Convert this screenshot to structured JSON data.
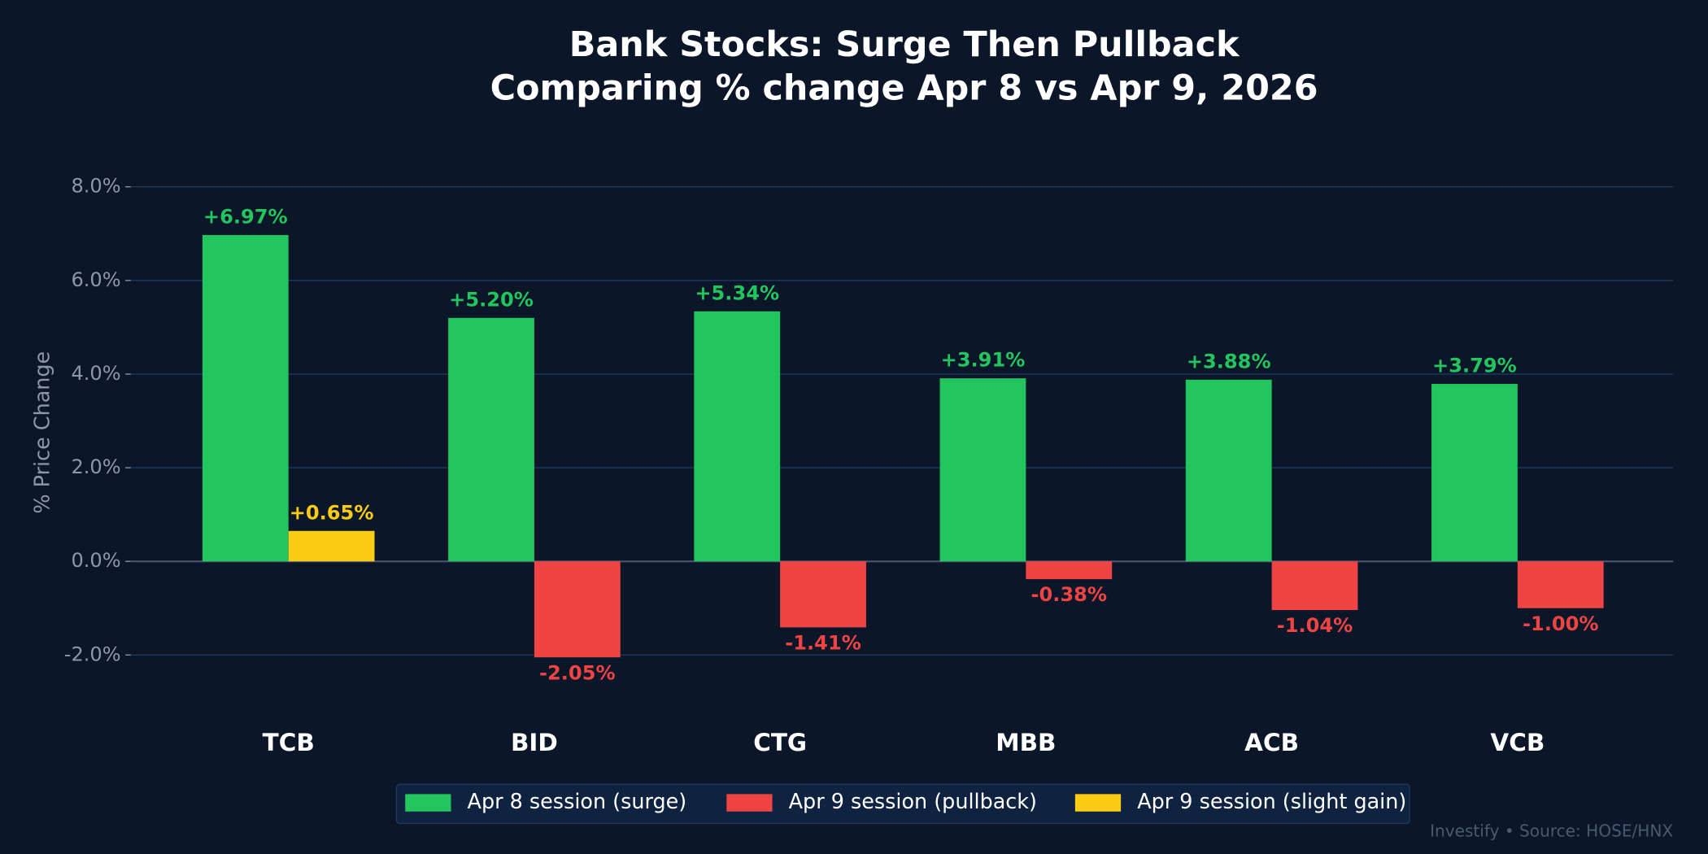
{
  "chart_data": {
    "type": "bar",
    "title": "Bank Stocks: Surge Then Pullback",
    "subtitle": "Comparing % change Apr 8 vs Apr 9, 2026",
    "y_label": "% Price Change",
    "footer": "Investify  •  Source: HOSE/HNX",
    "categories": [
      "TCB",
      "BID",
      "CTG",
      "MBB",
      "ACB",
      "VCB"
    ],
    "series": [
      {
        "name": "Apr 8 session (surge)",
        "color": "#22c55e",
        "values": [
          6.97,
          5.2,
          5.34,
          3.91,
          3.88,
          3.79
        ],
        "value_labels": [
          "+6.97%",
          "+5.20%",
          "+5.34%",
          "+3.91%",
          "+3.88%",
          "+3.79%"
        ]
      },
      {
        "name": "Apr 9 session (pullback)",
        "color": "#ef4444",
        "values": [
          null,
          -2.05,
          -1.41,
          -0.38,
          -1.04,
          -1.0
        ],
        "value_labels": [
          null,
          "-2.05%",
          "-1.41%",
          "-0.38%",
          "-1.04%",
          "-1.00%"
        ]
      },
      {
        "name": "Apr 9 session (slight gain)",
        "color": "#facc15",
        "values": [
          0.65,
          null,
          null,
          null,
          null,
          null
        ],
        "value_labels": [
          "+0.65%",
          null,
          null,
          null,
          null,
          null
        ]
      }
    ],
    "ylim": [
      -2.9,
      8.5
    ],
    "yticks": [
      {
        "value": -2,
        "label": "-2.0%"
      },
      {
        "value": 0,
        "label": "0.0%"
      },
      {
        "value": 2,
        "label": "2.0%"
      },
      {
        "value": 4,
        "label": "4.0%"
      },
      {
        "value": 6,
        "label": "6.0%"
      },
      {
        "value": 8,
        "label": "8.0%"
      }
    ],
    "grid": true,
    "legend": "bottom"
  }
}
